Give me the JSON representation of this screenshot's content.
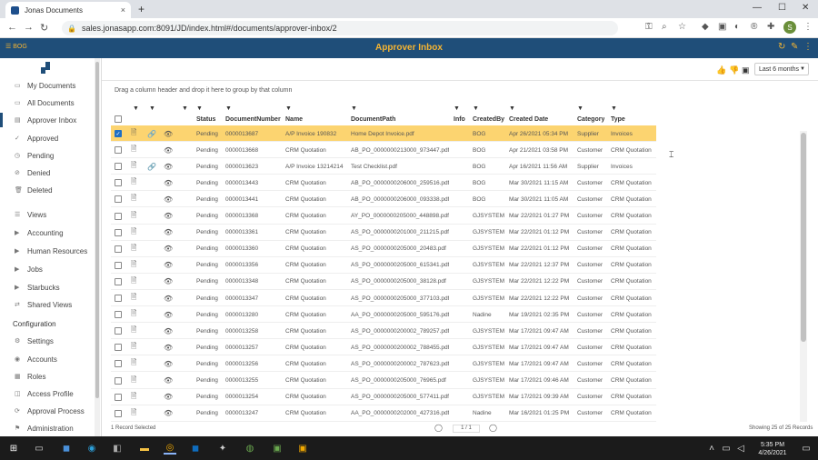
{
  "browser": {
    "tab_title": "Jonas Documents",
    "tab_close": "×",
    "new_tab": "+",
    "url": "sales.jonasapp.com:8091/JD/index.html#/documents/approver-inbox/2",
    "avatar_letter": "S"
  },
  "app": {
    "brand": "BOG",
    "title": "Approver Inbox"
  },
  "sidebar": {
    "items": [
      {
        "label": "My Documents",
        "icon": "folder-icon"
      },
      {
        "label": "All Documents",
        "icon": "folder-icon"
      },
      {
        "label": "Approver Inbox",
        "icon": "inbox-icon"
      },
      {
        "label": "Approved",
        "icon": "check-icon"
      },
      {
        "label": "Pending",
        "icon": "clock-icon"
      },
      {
        "label": "Denied",
        "icon": "deny-icon"
      },
      {
        "label": "Deleted",
        "icon": "trash-icon"
      },
      {
        "label": "Views",
        "icon": "views-icon"
      },
      {
        "label": "Accounting",
        "icon": "caret-icon"
      },
      {
        "label": "Human Resources",
        "icon": "caret-icon"
      },
      {
        "label": "Jobs",
        "icon": "caret-icon"
      },
      {
        "label": "Starbucks",
        "icon": "caret-icon"
      },
      {
        "label": "Shared Views",
        "icon": "share-icon"
      },
      {
        "label": "Settings",
        "icon": "gear-icon"
      },
      {
        "label": "Accounts",
        "icon": "accounts-icon"
      },
      {
        "label": "Roles",
        "icon": "roles-icon"
      },
      {
        "label": "Access Profile",
        "icon": "profile-icon"
      },
      {
        "label": "Approval Process",
        "icon": "process-icon"
      },
      {
        "label": "Administration",
        "icon": "admin-icon"
      }
    ],
    "config_header": "Configuration"
  },
  "toolbar": {
    "range_value": "Last 6 months"
  },
  "grid": {
    "group_hint": "Drag a column header and drop it here to group by that column",
    "columns": [
      "Status",
      "DocumentNumber",
      "Name",
      "DocumentPath",
      "Info",
      "CreatedBy",
      "Created Date",
      "Category",
      "Type"
    ],
    "rows": [
      [
        "Pending",
        "0000013687",
        "A/P Invoice 190832",
        "Home Depot Invoice.pdf",
        "",
        "BOG",
        "Apr 26/2021 05:34 PM",
        "Supplier",
        "Invoices"
      ],
      [
        "Pending",
        "0000013668",
        "CRM Quotation",
        "AB_PO_0000000213000_973447.pdf",
        "",
        "BOG",
        "Apr 21/2021 03:58 PM",
        "Customer",
        "CRM Quotation"
      ],
      [
        "Pending",
        "0000013623",
        "A/P Invoice 13214214",
        "Test Checklist.pdf",
        "",
        "BOG",
        "Apr 16/2021 11:56 AM",
        "Supplier",
        "Invoices"
      ],
      [
        "Pending",
        "0000013443",
        "CRM Quotation",
        "AB_PO_0000000206000_259516.pdf",
        "",
        "BOG",
        "Mar 30/2021 11:15 AM",
        "Customer",
        "CRM Quotation"
      ],
      [
        "Pending",
        "0000013441",
        "CRM Quotation",
        "AB_PO_0000000206000_093338.pdf",
        "",
        "BOG",
        "Mar 30/2021 11:05 AM",
        "Customer",
        "CRM Quotation"
      ],
      [
        "Pending",
        "0000013368",
        "CRM Quotation",
        "AY_PO_0000000205000_448898.pdf",
        "",
        "GJSYSTEM",
        "Mar 22/2021 01:27 PM",
        "Customer",
        "CRM Quotation"
      ],
      [
        "Pending",
        "0000013361",
        "CRM Quotation",
        "AS_PO_0000000201000_211215.pdf",
        "",
        "GJSYSTEM",
        "Mar 22/2021 01:12 PM",
        "Customer",
        "CRM Quotation"
      ],
      [
        "Pending",
        "0000013360",
        "CRM Quotation",
        "AS_PO_0000000205000_20483.pdf",
        "",
        "GJSYSTEM",
        "Mar 22/2021 01:12 PM",
        "Customer",
        "CRM Quotation"
      ],
      [
        "Pending",
        "0000013356",
        "CRM Quotation",
        "AS_PO_0000000205000_615341.pdf",
        "",
        "GJSYSTEM",
        "Mar 22/2021 12:37 PM",
        "Customer",
        "CRM Quotation"
      ],
      [
        "Pending",
        "0000013348",
        "CRM Quotation",
        "AS_PO_0000000205000_38128.pdf",
        "",
        "GJSYSTEM",
        "Mar 22/2021 12:22 PM",
        "Customer",
        "CRM Quotation"
      ],
      [
        "Pending",
        "0000013347",
        "CRM Quotation",
        "AS_PO_0000000205000_377103.pdf",
        "",
        "GJSYSTEM",
        "Mar 22/2021 12:22 PM",
        "Customer",
        "CRM Quotation"
      ],
      [
        "Pending",
        "0000013280",
        "CRM Quotation",
        "AA_PO_0000000205000_595176.pdf",
        "",
        "Nadine",
        "Mar 19/2021 02:35 PM",
        "Customer",
        "CRM Quotation"
      ],
      [
        "Pending",
        "0000013258",
        "CRM Quotation",
        "AS_PO_0000000200002_789257.pdf",
        "",
        "GJSYSTEM",
        "Mar 17/2021 09:47 AM",
        "Customer",
        "CRM Quotation"
      ],
      [
        "Pending",
        "0000013257",
        "CRM Quotation",
        "AS_PO_0000000200002_788455.pdf",
        "",
        "GJSYSTEM",
        "Mar 17/2021 09:47 AM",
        "Customer",
        "CRM Quotation"
      ],
      [
        "Pending",
        "0000013256",
        "CRM Quotation",
        "AS_PO_0000000200002_787623.pdf",
        "",
        "GJSYSTEM",
        "Mar 17/2021 09:47 AM",
        "Customer",
        "CRM Quotation"
      ],
      [
        "Pending",
        "0000013255",
        "CRM Quotation",
        "AS_PO_0000000205000_76965.pdf",
        "",
        "GJSYSTEM",
        "Mar 17/2021 09:46 AM",
        "Customer",
        "CRM Quotation"
      ],
      [
        "Pending",
        "0000013254",
        "CRM Quotation",
        "AS_PO_0000000205000_577411.pdf",
        "",
        "GJSYSTEM",
        "Mar 17/2021 09:39 AM",
        "Customer",
        "CRM Quotation"
      ],
      [
        "Pending",
        "0000013247",
        "CRM Quotation",
        "AA_PO_0000000202000_427316.pdf",
        "",
        "Nadine",
        "Mar 16/2021 01:25 PM",
        "Customer",
        "CRM Quotation"
      ]
    ],
    "row_icons": [
      {
        "link": true
      },
      {
        "link": false
      },
      {
        "link": true
      },
      {
        "link": false
      },
      {
        "link": false
      },
      {
        "link": false
      },
      {
        "link": false
      },
      {
        "link": false
      },
      {
        "link": false
      },
      {
        "link": false
      },
      {
        "link": false
      },
      {
        "link": false
      },
      {
        "link": false
      },
      {
        "link": false
      },
      {
        "link": false
      },
      {
        "link": false
      },
      {
        "link": false
      },
      {
        "link": false
      }
    ],
    "selected_row": 0
  },
  "footer": {
    "selected": "1 Record Selected",
    "pager": "1 / 1",
    "showing": "Showing 25 of 25 Records"
  },
  "taskbar": {
    "time": "5:35 PM",
    "date": "4/26/2021"
  },
  "colors": {
    "header_bg": "#1f4e79",
    "accent": "#f7b531",
    "selected_row": "#fcd470"
  }
}
